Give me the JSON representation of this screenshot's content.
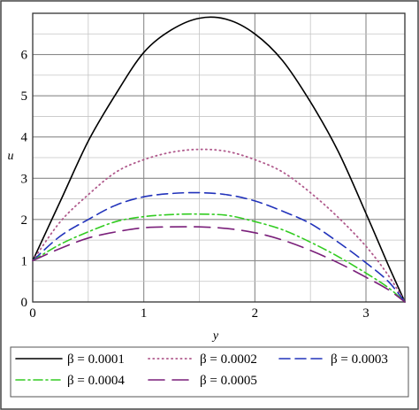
{
  "chart_data": {
    "type": "line",
    "title": "",
    "xlabel": "y",
    "ylabel": "u",
    "xlim": [
      0,
      3.35
    ],
    "ylim": [
      0,
      7
    ],
    "x_ticks": [
      "0",
      "1",
      "2",
      "3"
    ],
    "y_ticks": [
      "0",
      "1",
      "2",
      "3",
      "4",
      "5",
      "6"
    ],
    "grid": true,
    "legend_position": "bottom",
    "x": [
      0,
      0.25,
      0.5,
      0.75,
      1.0,
      1.25,
      1.5,
      1.75,
      2.0,
      2.25,
      2.5,
      2.75,
      3.0,
      3.2,
      3.35
    ],
    "series": [
      {
        "name": "β = 0.0001",
        "color": "#000000",
        "dash": "solid",
        "values": [
          1.0,
          2.45,
          3.9,
          5.05,
          6.05,
          6.6,
          6.88,
          6.85,
          6.5,
          5.85,
          4.85,
          3.65,
          2.15,
          0.9,
          0.0
        ]
      },
      {
        "name": "β = 0.0002",
        "color": "#b05a8c",
        "dash": "dot",
        "values": [
          1.0,
          1.95,
          2.6,
          3.15,
          3.45,
          3.63,
          3.7,
          3.65,
          3.45,
          3.15,
          2.65,
          2.05,
          1.35,
          0.65,
          0.0
        ]
      },
      {
        "name": "β = 0.0003",
        "color": "#2233bb",
        "dash": "dash",
        "values": [
          1.0,
          1.6,
          2.0,
          2.35,
          2.55,
          2.63,
          2.65,
          2.6,
          2.45,
          2.2,
          1.9,
          1.45,
          0.95,
          0.5,
          0.0
        ]
      },
      {
        "name": "β = 0.0004",
        "color": "#33cc22",
        "dash": "dashdot",
        "values": [
          1.0,
          1.4,
          1.7,
          1.95,
          2.07,
          2.12,
          2.13,
          2.1,
          1.95,
          1.75,
          1.45,
          1.1,
          0.7,
          0.35,
          0.0
        ]
      },
      {
        "name": "β = 0.0005",
        "color": "#7a1f7a",
        "dash": "longdash",
        "values": [
          1.0,
          1.3,
          1.55,
          1.7,
          1.8,
          1.82,
          1.82,
          1.78,
          1.68,
          1.5,
          1.25,
          0.95,
          0.6,
          0.3,
          0.0
        ]
      }
    ]
  }
}
